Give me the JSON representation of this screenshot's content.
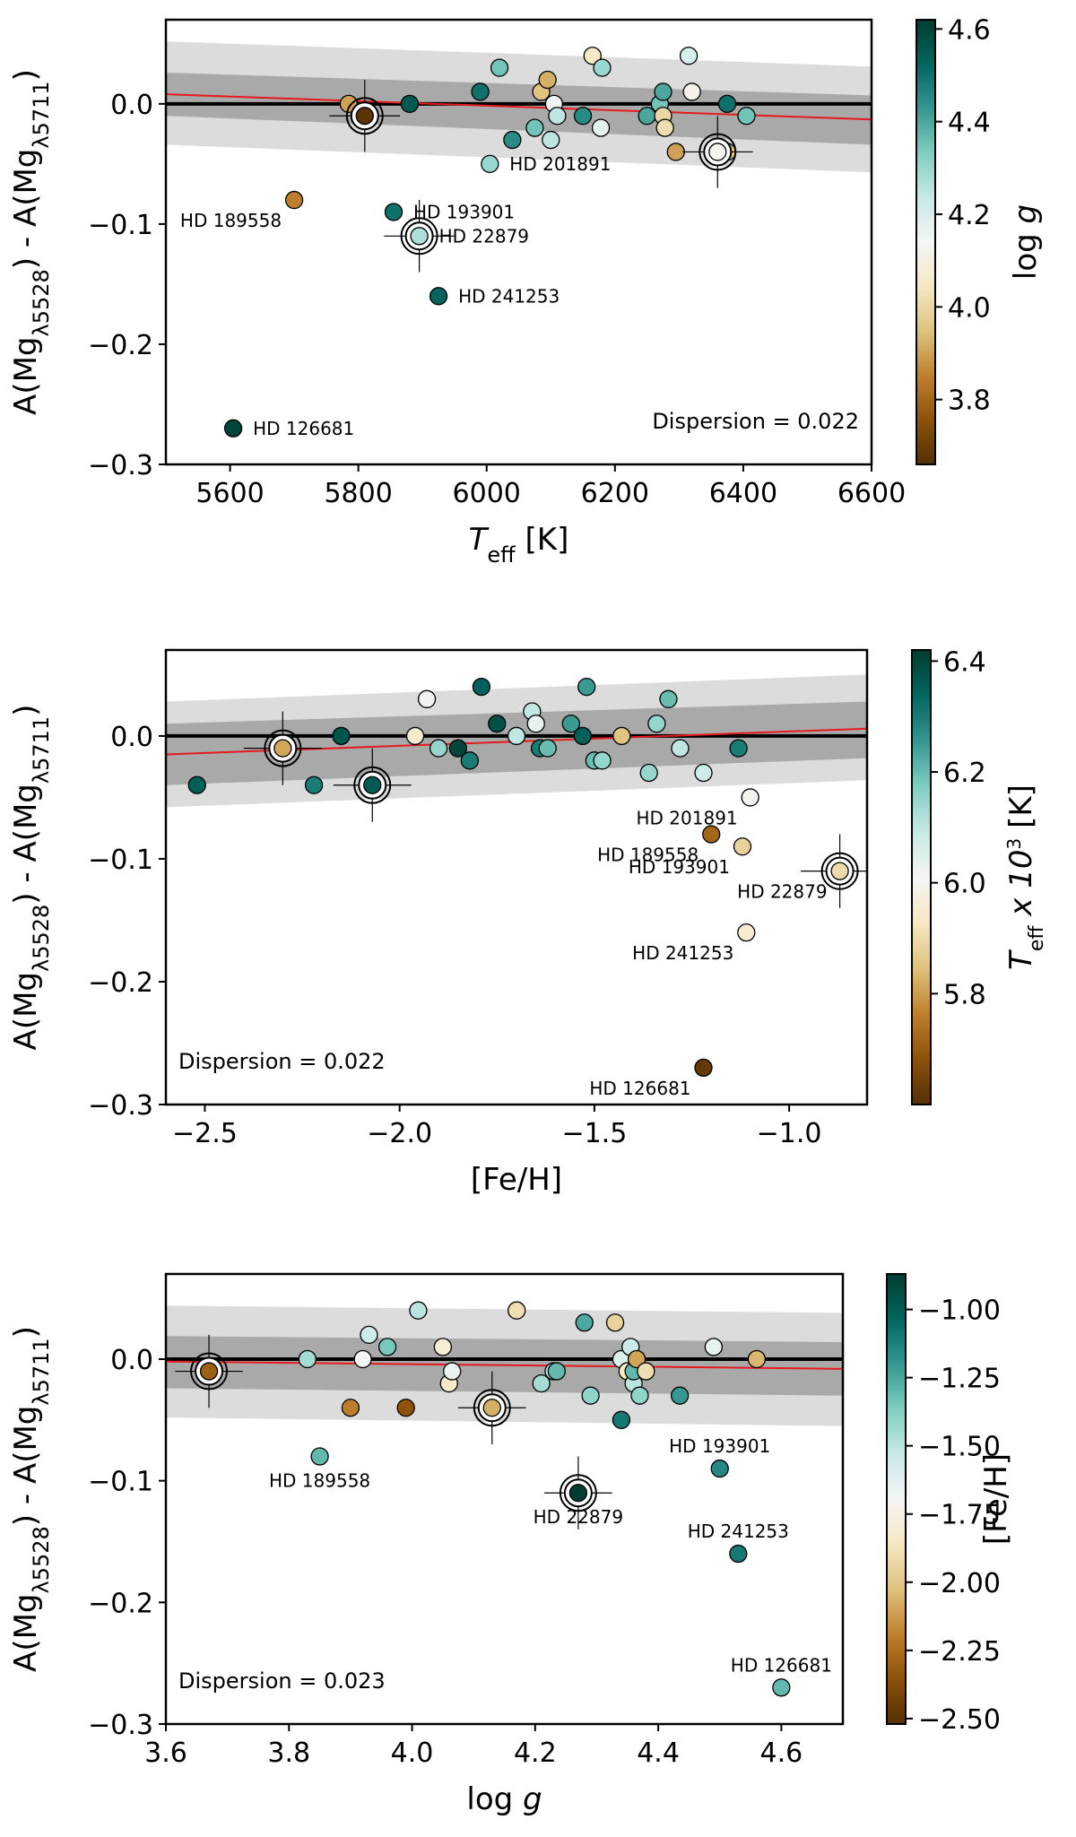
{
  "chart_data": [
    {
      "type": "scatter",
      "panel": "top",
      "title": "",
      "xlabel_main": "T",
      "xlabel_sub": "eff",
      "xlabel_unit": " [K]",
      "ylabel_prefix": "A(Mg",
      "ylabel_sub1": "λ5528",
      "ylabel_mid": ") - A(Mg",
      "ylabel_sub2": "λ5711",
      "ylabel_suffix": ")",
      "xlim": [
        5500,
        6600
      ],
      "ylim": [
        -0.3,
        0.07
      ],
      "xticks": [
        5600,
        5800,
        6000,
        6200,
        6400,
        6600
      ],
      "xtick_labels": [
        "5600",
        "5800",
        "6000",
        "6200",
        "6400",
        "6600"
      ],
      "yticks": [
        -0.3,
        -0.2,
        -0.1,
        0.0
      ],
      "ytick_labels": [
        "−0.3",
        "−0.2",
        "−0.1",
        "0.0"
      ],
      "dispersion_text": "Dispersion = 0.022",
      "dispersion_value": 0.022,
      "dispersion_position": "bottom-right",
      "fit_line": [
        [
          5500,
          0.008
        ],
        [
          6600,
          -0.013
        ]
      ],
      "band_inner": {
        "x": [
          5500,
          6600
        ],
        "upper": [
          0.026,
          0.007
        ],
        "lower": [
          -0.01,
          -0.034
        ]
      },
      "band_outer": {
        "x": [
          5500,
          6600
        ],
        "upper": [
          0.052,
          0.031
        ],
        "lower": [
          -0.034,
          -0.057
        ]
      },
      "colorbar": {
        "label_text": "log g",
        "label_main": "log ",
        "label_italic": "g",
        "label_sup": "",
        "label_after": "",
        "range": [
          3.66,
          4.62
        ],
        "ticks": [
          3.8,
          4.0,
          4.2,
          4.4,
          4.6
        ],
        "tick_labels": [
          "3.8",
          "4.0",
          "4.2",
          "4.4",
          "4.6"
        ]
      },
      "points": [
        {
          "x": 5785,
          "y": 0.0,
          "c": 3.9
        },
        {
          "x": 5880,
          "y": 0.0,
          "c": 4.55
        },
        {
          "x": 5990,
          "y": 0.01,
          "c": 4.5
        },
        {
          "x": 6020,
          "y": 0.03,
          "c": 4.35
        },
        {
          "x": 6040,
          "y": -0.03,
          "c": 4.45
        },
        {
          "x": 6075,
          "y": -0.02,
          "c": 4.35
        },
        {
          "x": 6085,
          "y": 0.01,
          "c": 3.95
        },
        {
          "x": 6095,
          "y": 0.02,
          "c": 3.92
        },
        {
          "x": 6100,
          "y": -0.03,
          "c": 4.25
        },
        {
          "x": 6105,
          "y": 0.0,
          "c": 4.15
        },
        {
          "x": 6110,
          "y": -0.01,
          "c": 4.25
        },
        {
          "x": 6150,
          "y": -0.01,
          "c": 4.45
        },
        {
          "x": 6165,
          "y": 0.04,
          "c": 4.05
        },
        {
          "x": 6180,
          "y": 0.03,
          "c": 4.3
        },
        {
          "x": 6178,
          "y": -0.02,
          "c": 4.18
        },
        {
          "x": 6250,
          "y": -0.01,
          "c": 4.4
        },
        {
          "x": 6270,
          "y": 0.0,
          "c": 4.35
        },
        {
          "x": 6275,
          "y": 0.01,
          "c": 4.4
        },
        {
          "x": 6275,
          "y": -0.01,
          "c": 4.0
        },
        {
          "x": 6278,
          "y": -0.02,
          "c": 4.02
        },
        {
          "x": 6295,
          "y": -0.04,
          "c": 3.9
        },
        {
          "x": 6315,
          "y": 0.04,
          "c": 4.2
        },
        {
          "x": 6320,
          "y": 0.01,
          "c": 4.12
        },
        {
          "x": 6375,
          "y": -0.04,
          "c": 3.95
        },
        {
          "x": 6375,
          "y": 0.0,
          "c": 4.5
        },
        {
          "x": 6405,
          "y": -0.01,
          "c": 4.35
        },
        {
          "x": 6005,
          "y": -0.05,
          "c": 4.3
        },
        {
          "x": 5700,
          "y": -0.08,
          "c": 3.85
        },
        {
          "x": 5855,
          "y": -0.09,
          "c": 4.5
        },
        {
          "x": 5925,
          "y": -0.16,
          "c": 4.53
        },
        {
          "x": 5605,
          "y": -0.27,
          "c": 4.6
        }
      ],
      "highlighted": [
        {
          "x": 5810,
          "y": -0.01,
          "c": 3.67,
          "xerr": 55,
          "yerr": 0.03
        },
        {
          "x": 5895,
          "y": -0.11,
          "c": 4.27,
          "xerr": 55,
          "yerr": 0.03
        },
        {
          "x": 6360,
          "y": -0.04,
          "c": 4.13,
          "xerr": 55,
          "yerr": 0.03
        }
      ],
      "annotations": [
        {
          "text": "HD 201891",
          "x": 6005,
          "y": -0.05,
          "side": "right"
        },
        {
          "text": "HD 189558",
          "x": 5700,
          "y": -0.08,
          "side": "below-left"
        },
        {
          "text": "HD 193901",
          "x": 5855,
          "y": -0.09,
          "side": "right"
        },
        {
          "text": "HD 22879",
          "x": 5895,
          "y": -0.11,
          "side": "right"
        },
        {
          "text": "HD 241253",
          "x": 5925,
          "y": -0.16,
          "side": "right"
        },
        {
          "text": "HD 126681",
          "x": 5605,
          "y": -0.27,
          "side": "right"
        }
      ]
    },
    {
      "type": "scatter",
      "panel": "middle",
      "title": "",
      "xlabel_main": "[Fe/H]",
      "xlabel_sub": "",
      "xlabel_unit": "",
      "ylabel_prefix": "A(Mg",
      "ylabel_sub1": "λ5528",
      "ylabel_mid": ") - A(Mg",
      "ylabel_sub2": "λ5711",
      "ylabel_suffix": ")",
      "xlim": [
        -2.6,
        -0.8
      ],
      "ylim": [
        -0.3,
        0.07
      ],
      "xticks": [
        -2.5,
        -2.0,
        -1.5,
        -1.0
      ],
      "xtick_labels": [
        "−2.5",
        "−2.0",
        "−1.5",
        "−1.0"
      ],
      "yticks": [
        -0.3,
        -0.2,
        -0.1,
        0.0
      ],
      "ytick_labels": [
        "−0.3",
        "−0.2",
        "−0.1",
        "0.0"
      ],
      "dispersion_text": "Dispersion = 0.022",
      "dispersion_value": 0.022,
      "dispersion_position": "bottom-left",
      "fit_line": [
        [
          -2.6,
          -0.015
        ],
        [
          -0.8,
          0.006
        ]
      ],
      "band_inner": {
        "x": [
          -2.6,
          -0.8
        ],
        "upper": [
          0.01,
          0.028
        ],
        "lower": [
          -0.04,
          -0.018
        ]
      },
      "band_outer": {
        "x": [
          -2.6,
          -0.8
        ],
        "upper": [
          0.028,
          0.05
        ],
        "lower": [
          -0.058,
          -0.036
        ]
      },
      "colorbar": {
        "label_text": "Teff x 10^3 [K]",
        "label_main": "T",
        "label_italic": "",
        "label_sub": "eff",
        "label_after": " x 10",
        "label_sup": "3",
        "label_unit": " [K]",
        "range": [
          5.6,
          6.42
        ],
        "ticks": [
          5.8,
          6.0,
          6.2,
          6.4
        ],
        "tick_labels": [
          "5.8",
          "6.0",
          "6.2",
          "6.4"
        ]
      },
      "points": [
        {
          "x": -2.52,
          "y": -0.04,
          "c": 6.35
        },
        {
          "x": -2.22,
          "y": -0.04,
          "c": 6.3
        },
        {
          "x": -2.15,
          "y": 0.0,
          "c": 6.37
        },
        {
          "x": -1.96,
          "y": 0.0,
          "c": 5.95
        },
        {
          "x": -1.93,
          "y": 0.03,
          "c": 6.02
        },
        {
          "x": -1.9,
          "y": -0.01,
          "c": 6.15
        },
        {
          "x": -1.85,
          "y": -0.01,
          "c": 6.4
        },
        {
          "x": -1.82,
          "y": -0.02,
          "c": 6.3
        },
        {
          "x": -1.79,
          "y": 0.04,
          "c": 6.35
        },
        {
          "x": -1.75,
          "y": 0.01,
          "c": 6.38
        },
        {
          "x": -1.7,
          "y": 0.0,
          "c": 6.1
        },
        {
          "x": -1.66,
          "y": 0.02,
          "c": 6.1
        },
        {
          "x": -1.65,
          "y": 0.01,
          "c": 6.03
        },
        {
          "x": -1.64,
          "y": -0.01,
          "c": 6.3
        },
        {
          "x": -1.62,
          "y": -0.01,
          "c": 6.2
        },
        {
          "x": -1.56,
          "y": 0.01,
          "c": 6.25
        },
        {
          "x": -1.53,
          "y": 0.0,
          "c": 6.35
        },
        {
          "x": -1.52,
          "y": 0.04,
          "c": 6.25
        },
        {
          "x": -1.5,
          "y": -0.02,
          "c": 6.2
        },
        {
          "x": -1.48,
          "y": -0.02,
          "c": 6.15
        },
        {
          "x": -1.43,
          "y": 0.0,
          "c": 5.85
        },
        {
          "x": -1.36,
          "y": -0.03,
          "c": 6.15
        },
        {
          "x": -1.34,
          "y": 0.01,
          "c": 6.15
        },
        {
          "x": -1.31,
          "y": 0.03,
          "c": 6.2
        },
        {
          "x": -1.28,
          "y": -0.01,
          "c": 6.1
        },
        {
          "x": -1.22,
          "y": -0.03,
          "c": 6.08
        },
        {
          "x": -1.13,
          "y": -0.01,
          "c": 6.3
        },
        {
          "x": -1.1,
          "y": -0.05,
          "c": 6.0
        },
        {
          "x": -1.2,
          "y": -0.08,
          "c": 5.72
        },
        {
          "x": -1.12,
          "y": -0.09,
          "c": 5.88
        },
        {
          "x": -1.11,
          "y": -0.16,
          "c": 5.95
        },
        {
          "x": -1.22,
          "y": -0.27,
          "c": 5.62
        }
      ],
      "highlighted": [
        {
          "x": -2.3,
          "y": -0.01,
          "c": 5.81,
          "xerr": 0.1,
          "yerr": 0.03
        },
        {
          "x": -2.07,
          "y": -0.04,
          "c": 6.36,
          "xerr": 0.1,
          "yerr": 0.03
        },
        {
          "x": -0.87,
          "y": -0.11,
          "c": 5.9,
          "xerr": 0.1,
          "yerr": 0.03
        }
      ],
      "annotations": [
        {
          "text": "HD 201891",
          "x": -1.1,
          "y": -0.05,
          "side": "below-left"
        },
        {
          "text": "HD 189558",
          "x": -1.2,
          "y": -0.08,
          "side": "below-left"
        },
        {
          "text": "HD 193901",
          "x": -1.12,
          "y": -0.09,
          "side": "below-left"
        },
        {
          "text": "HD 22879",
          "x": -0.87,
          "y": -0.11,
          "side": "below-left"
        },
        {
          "text": "HD 241253",
          "x": -1.11,
          "y": -0.16,
          "side": "below-left"
        },
        {
          "text": "HD 126681",
          "x": -1.22,
          "y": -0.27,
          "side": "below-left"
        }
      ]
    },
    {
      "type": "scatter",
      "panel": "bottom",
      "title": "",
      "xlabel_main": "log ",
      "xlabel_italic": "g",
      "xlabel_sub": "",
      "xlabel_unit": "",
      "ylabel_prefix": "A(Mg",
      "ylabel_sub1": "λ5528",
      "ylabel_mid": ") - A(Mg",
      "ylabel_sub2": "λ5711",
      "ylabel_suffix": ")",
      "xlim": [
        3.6,
        4.7
      ],
      "ylim": [
        -0.3,
        0.07
      ],
      "xticks": [
        3.6,
        3.8,
        4.0,
        4.2,
        4.4,
        4.6
      ],
      "xtick_labels": [
        "3.6",
        "3.8",
        "4.0",
        "4.2",
        "4.4",
        "4.6"
      ],
      "yticks": [
        -0.3,
        -0.2,
        -0.1,
        0.0
      ],
      "ytick_labels": [
        "−0.3",
        "−0.2",
        "−0.1",
        "0.0"
      ],
      "dispersion_text": "Dispersion = 0.023",
      "dispersion_value": 0.023,
      "dispersion_position": "bottom-left",
      "fit_line": [
        [
          3.6,
          -0.002
        ],
        [
          4.7,
          -0.008
        ]
      ],
      "band_inner": {
        "x": [
          3.6,
          4.7
        ],
        "upper": [
          0.019,
          0.014
        ],
        "lower": [
          -0.024,
          -0.03
        ]
      },
      "band_outer": {
        "x": [
          3.6,
          4.7
        ],
        "upper": [
          0.044,
          0.038
        ],
        "lower": [
          -0.048,
          -0.055
        ]
      },
      "colorbar": {
        "label_text": "[Fe/H]",
        "label_main": "[Fe/H]",
        "label_italic": "",
        "label_sup": "",
        "label_after": "",
        "range": [
          -2.52,
          -0.87
        ],
        "ticks": [
          -2.5,
          -2.25,
          -2.0,
          -1.75,
          -1.5,
          -1.25,
          -1.0
        ],
        "tick_labels": [
          "−2.50",
          "−2.25",
          "−2.00",
          "−1.75",
          "−1.50",
          "−1.25",
          "−1.00"
        ]
      },
      "points": [
        {
          "x": 3.83,
          "y": 0.0,
          "c": -1.45
        },
        {
          "x": 3.9,
          "y": -0.04,
          "c": -2.2
        },
        {
          "x": 3.92,
          "y": 0.0,
          "c": -1.7
        },
        {
          "x": 3.93,
          "y": 0.02,
          "c": -1.55
        },
        {
          "x": 3.96,
          "y": 0.01,
          "c": -1.35
        },
        {
          "x": 3.99,
          "y": -0.04,
          "c": -2.35
        },
        {
          "x": 4.01,
          "y": 0.04,
          "c": -1.5
        },
        {
          "x": 4.05,
          "y": 0.01,
          "c": -1.8
        },
        {
          "x": 4.06,
          "y": -0.02,
          "c": -1.85
        },
        {
          "x": 4.065,
          "y": -0.01,
          "c": -1.65
        },
        {
          "x": 4.17,
          "y": 0.04,
          "c": -1.9
        },
        {
          "x": 4.21,
          "y": -0.02,
          "c": -1.45
        },
        {
          "x": 4.23,
          "y": -0.01,
          "c": -1.5
        },
        {
          "x": 4.235,
          "y": -0.01,
          "c": -1.3
        },
        {
          "x": 4.28,
          "y": 0.03,
          "c": -1.25
        },
        {
          "x": 4.29,
          "y": -0.03,
          "c": -1.4
        },
        {
          "x": 4.33,
          "y": 0.03,
          "c": -1.95
        },
        {
          "x": 4.34,
          "y": 0.0,
          "c": -1.6
        },
        {
          "x": 4.34,
          "y": -0.05,
          "c": -1.1
        },
        {
          "x": 4.35,
          "y": -0.01,
          "c": -1.85
        },
        {
          "x": 4.355,
          "y": 0.01,
          "c": -1.55
        },
        {
          "x": 4.36,
          "y": -0.02,
          "c": -1.5
        },
        {
          "x": 4.36,
          "y": -0.01,
          "c": -1.3
        },
        {
          "x": 4.365,
          "y": 0.0,
          "c": -2.1
        },
        {
          "x": 4.37,
          "y": -0.03,
          "c": -1.4
        },
        {
          "x": 4.38,
          "y": -0.01,
          "c": -1.9
        },
        {
          "x": 4.435,
          "y": -0.03,
          "c": -1.2
        },
        {
          "x": 4.49,
          "y": 0.01,
          "c": -1.65
        },
        {
          "x": 4.56,
          "y": 0.0,
          "c": -2.05
        },
        {
          "x": 3.85,
          "y": -0.08,
          "c": -1.3
        },
        {
          "x": 4.5,
          "y": -0.09,
          "c": -1.15
        },
        {
          "x": 4.53,
          "y": -0.16,
          "c": -1.1
        },
        {
          "x": 4.6,
          "y": -0.27,
          "c": -1.3
        }
      ],
      "highlighted": [
        {
          "x": 3.67,
          "y": -0.01,
          "c": -2.3,
          "xerr": 0.055,
          "yerr": 0.03
        },
        {
          "x": 4.13,
          "y": -0.04,
          "c": -2.07,
          "xerr": 0.055,
          "yerr": 0.03
        },
        {
          "x": 4.27,
          "y": -0.11,
          "c": -0.87,
          "xerr": 0.055,
          "yerr": 0.03
        }
      ],
      "annotations": [
        {
          "text": "HD 189558",
          "x": 3.85,
          "y": -0.08,
          "side": "below"
        },
        {
          "text": "HD 193901",
          "x": 4.5,
          "y": -0.09,
          "side": "above"
        },
        {
          "text": "HD 22879",
          "x": 4.27,
          "y": -0.11,
          "side": "below"
        },
        {
          "text": "HD 241253",
          "x": 4.53,
          "y": -0.16,
          "side": "above"
        },
        {
          "text": "HD 126681",
          "x": 4.6,
          "y": -0.27,
          "side": "above"
        }
      ]
    }
  ]
}
